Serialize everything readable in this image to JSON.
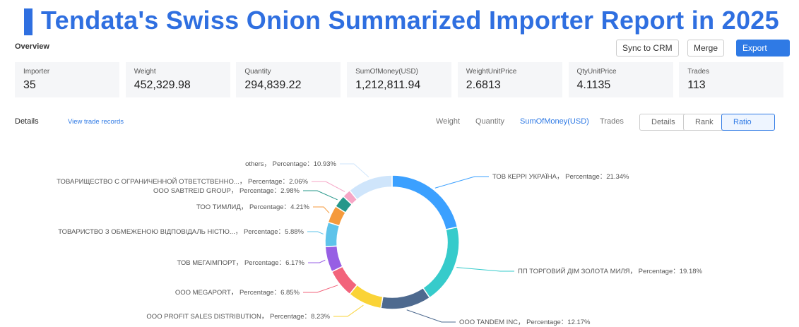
{
  "header": {
    "title": "Tendata's Swiss Onion Summarized Importer Report in 2025"
  },
  "overview": {
    "label": "Overview",
    "buttons": [
      "Sync to CRM",
      "Merge",
      "Export"
    ],
    "stats": [
      {
        "label": "Importer",
        "value": "35"
      },
      {
        "label": "Weight",
        "value": "452,329.98"
      },
      {
        "label": "Quantity",
        "value": "294,839.22"
      },
      {
        "label": "SumOfMoney(USD)",
        "value": "1,212,811.94"
      },
      {
        "label": "WeightUnitPrice",
        "value": "2.6813"
      },
      {
        "label": "QtyUnitPrice",
        "value": "4.1135"
      },
      {
        "label": "Trades",
        "value": "113"
      }
    ]
  },
  "details": {
    "label": "Details",
    "link": "View trade records",
    "metrics": [
      "Weight",
      "Quantity",
      "SumOfMoney(USD)",
      "Trades"
    ],
    "active_metric": 2,
    "views": [
      "Details",
      "Rank",
      "Ratio"
    ]
  },
  "chart_data": {
    "type": "pie",
    "separator": "， Percentage：",
    "categories": [
      "ТОВ КЕРРІ УКРАЇНА",
      "ПП ТОРГОВИЙ ДІМ ЗОЛОТА МИЛЯ",
      "OOO TANDEM INC",
      "OOO PROFIT SALES DISTRIBUTION",
      "OOO MEGAPORT",
      "ТОВ МЕГАІМПОРТ",
      "ТОВАРИСТВО З ОБМЕЖЕНОЮ ВІДПОВІДАЛЬ НІСТЮ...",
      "ТОО ТИМЛИД",
      "OOO SABTREID GROUP",
      "ТОВАРИЩЕСТВО С ОГРАНИЧЕННОЙ ОТВЕТСТВЕННО...",
      "others"
    ],
    "values": [
      21.34,
      19.18,
      12.17,
      8.23,
      6.85,
      6.17,
      5.88,
      4.21,
      2.98,
      2.06,
      10.93
    ],
    "value_labels": [
      "21.34%",
      "19.18%",
      "12.17%",
      "8.23%",
      "6.85%",
      "6.17%",
      "5.88%",
      "4.21%",
      "2.98%",
      "2.06%",
      "10.93%"
    ],
    "colors": [
      "#3ba0ff",
      "#36cbcb",
      "#4e6a8f",
      "#fad337",
      "#f2637b",
      "#975fe4",
      "#5ec3ea",
      "#f59a3c",
      "#26978a",
      "#f6a6c6",
      "#cfe5fb"
    ]
  }
}
